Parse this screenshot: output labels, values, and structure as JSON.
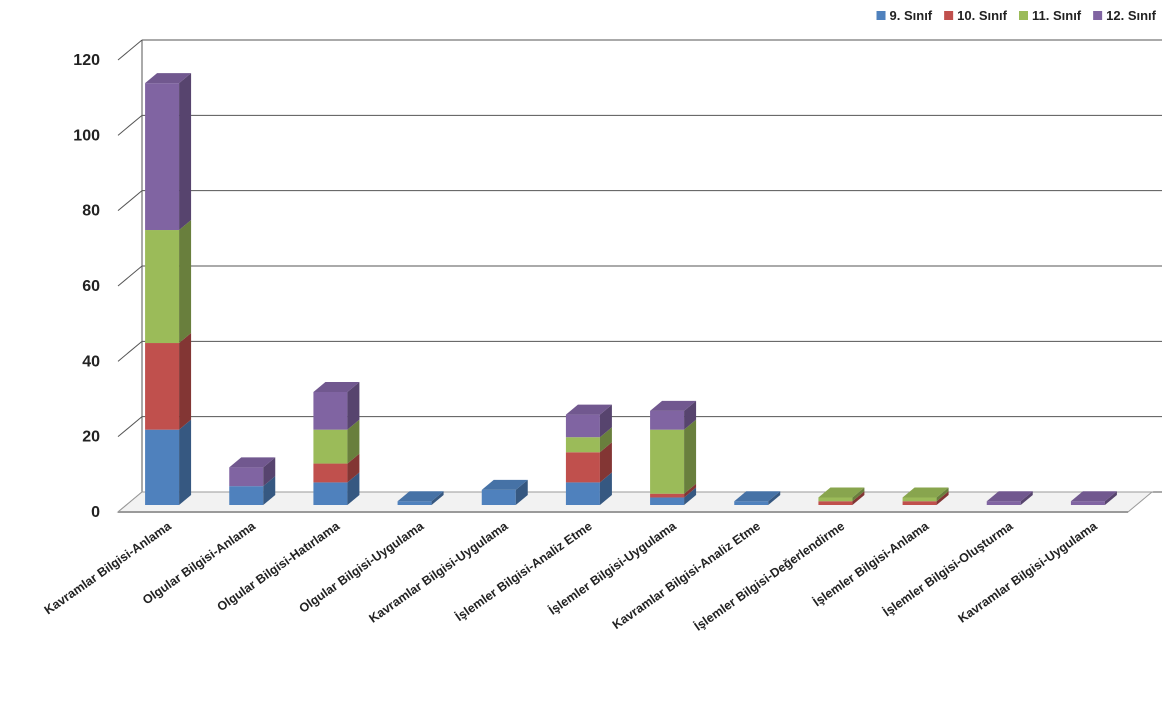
{
  "chart_data": {
    "type": "bar",
    "stacked": true,
    "three_d": true,
    "title": "",
    "xlabel": "",
    "ylabel": "",
    "ylim": [
      0,
      120
    ],
    "yticks": [
      0,
      20,
      40,
      60,
      80,
      100,
      120
    ],
    "grid": true,
    "legend_position": "top-right",
    "categories": [
      "Kavramlar Bilgisi-Anlama",
      "Olgular Bilgisi-Anlama",
      "Olgular Bilgisi-Hatırlama",
      "Olgular Bilgisi-Uygulama",
      "Kavramlar Bilgisi-Uygulama",
      "İşlemler Bilgisi-Analiz Etme",
      "İşlemler Bilgisi-Uygulama",
      "Kavramlar Bilgisi-Analiz Etme",
      "İşlemler Bilgisi-Değerlendirme",
      "İşlemler Bilgisi-Anlama",
      "İşlemler Bilgisi-Oluşturma",
      "Kavramlar Bilgisi-Uygulama"
    ],
    "series": [
      {
        "name": "9. Sınıf",
        "color": "#4f81bd",
        "values": [
          20,
          5,
          6,
          1,
          4,
          6,
          2,
          1,
          0,
          0,
          0,
          0
        ]
      },
      {
        "name": "10. Sınıf",
        "color": "#c0504d",
        "values": [
          23,
          0,
          5,
          0,
          0,
          8,
          1,
          0,
          1,
          1,
          0,
          0
        ]
      },
      {
        "name": "11. Sınıf",
        "color": "#9bbb59",
        "values": [
          30,
          0,
          9,
          0,
          0,
          4,
          17,
          0,
          1,
          1,
          0,
          0
        ]
      },
      {
        "name": "12. Sınıf",
        "color": "#8064a2",
        "values": [
          39,
          5,
          10,
          0,
          0,
          6,
          5,
          0,
          0,
          0,
          1,
          1
        ]
      }
    ]
  }
}
